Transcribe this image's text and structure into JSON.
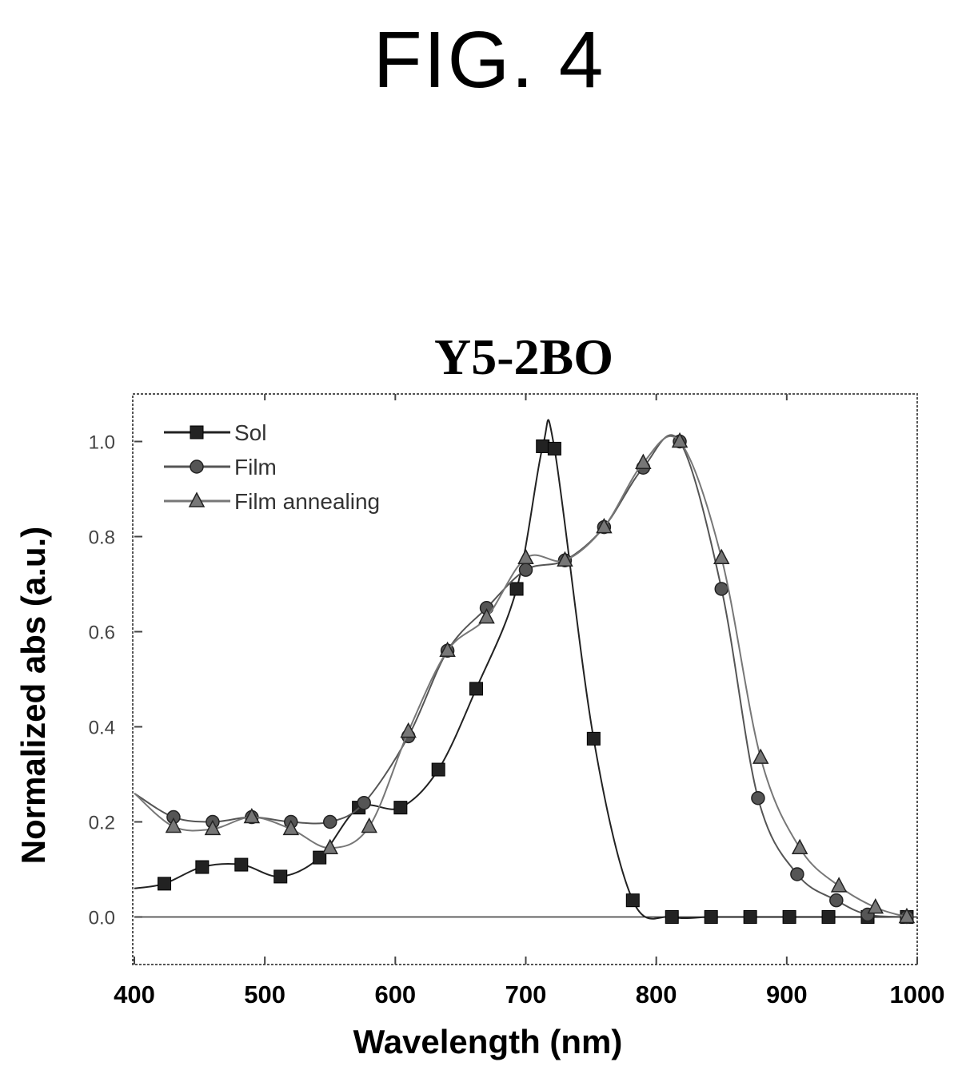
{
  "figure_label": "FIG. 4",
  "chart_data": {
    "type": "line",
    "title": "Y5-2BO",
    "xlabel": "Wavelength (nm)",
    "ylabel": "Normalized abs (a.u.)",
    "xlim": [
      400,
      1000
    ],
    "ylim": [
      -0.1,
      1.1
    ],
    "xticks": [
      400,
      500,
      600,
      700,
      800,
      900,
      1000
    ],
    "yticks": [
      0.0,
      0.2,
      0.4,
      0.6,
      0.8,
      1.0
    ],
    "ytick_labels": [
      "0.0",
      "0.2",
      "0.4",
      "0.6",
      "0.8",
      "1.0"
    ],
    "grid": false,
    "legend_position": "top-left",
    "reference_line_y": 0.0,
    "series": [
      {
        "name": "Sol",
        "marker": "square",
        "color": "#222222",
        "x": [
          400,
          423,
          452,
          482,
          512,
          542,
          572,
          604,
          633,
          662,
          693,
          713,
          722,
          752,
          782,
          812,
          842,
          872,
          902,
          932,
          962,
          992
        ],
        "y": [
          0.06,
          0.07,
          0.105,
          0.11,
          0.085,
          0.125,
          0.23,
          0.23,
          0.31,
          0.48,
          0.69,
          0.99,
          0.985,
          0.375,
          0.035,
          0.0,
          0.0,
          0.0,
          0.0,
          0.0,
          0.0,
          0.0
        ]
      },
      {
        "name": "Film",
        "marker": "circle",
        "color": "#555555",
        "x": [
          400,
          430,
          460,
          490,
          520,
          550,
          576,
          610,
          640,
          670,
          700,
          730,
          760,
          790,
          818,
          850,
          878,
          908,
          938,
          962,
          992
        ],
        "y": [
          0.26,
          0.21,
          0.2,
          0.21,
          0.2,
          0.2,
          0.24,
          0.38,
          0.56,
          0.65,
          0.73,
          0.75,
          0.82,
          0.945,
          1.0,
          0.69,
          0.25,
          0.09,
          0.035,
          0.005,
          0.0
        ]
      },
      {
        "name": "Film annealing",
        "marker": "triangle",
        "color": "#777777",
        "x": [
          400,
          430,
          460,
          490,
          520,
          550,
          580,
          610,
          640,
          670,
          700,
          730,
          760,
          790,
          818,
          850,
          880,
          910,
          940,
          968,
          992
        ],
        "y": [
          0.26,
          0.19,
          0.185,
          0.21,
          0.185,
          0.145,
          0.19,
          0.39,
          0.56,
          0.63,
          0.755,
          0.75,
          0.82,
          0.955,
          1.0,
          0.755,
          0.335,
          0.145,
          0.065,
          0.02,
          0.0
        ]
      }
    ]
  }
}
